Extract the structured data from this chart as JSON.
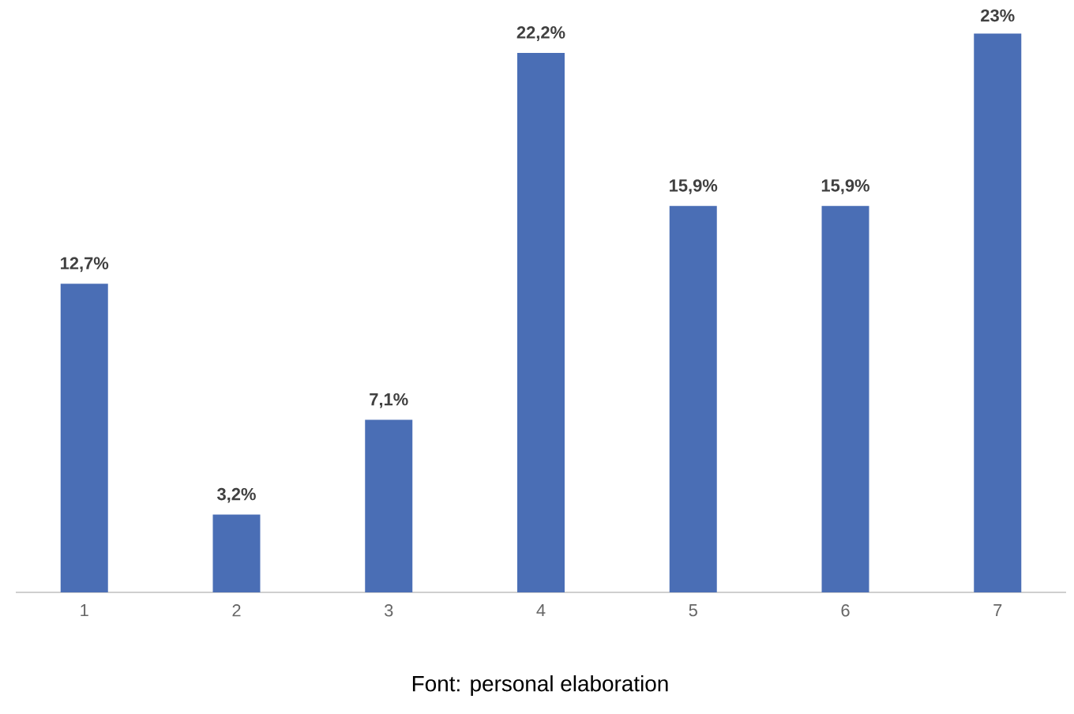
{
  "chart_data": {
    "type": "bar",
    "categories": [
      "1",
      "2",
      "3",
      "4",
      "5",
      "6",
      "7"
    ],
    "values": [
      12.7,
      3.2,
      7.1,
      22.2,
      15.9,
      15.9,
      23
    ],
    "color": "#4a6eb5",
    "value_labels": [
      "12,7%",
      "3,2%",
      "7,1%",
      "22,2%",
      "15,9%",
      "15,9%",
      "23%"
    ],
    "annotations": [
      "Font: personal elaboration"
    ]
  }
}
